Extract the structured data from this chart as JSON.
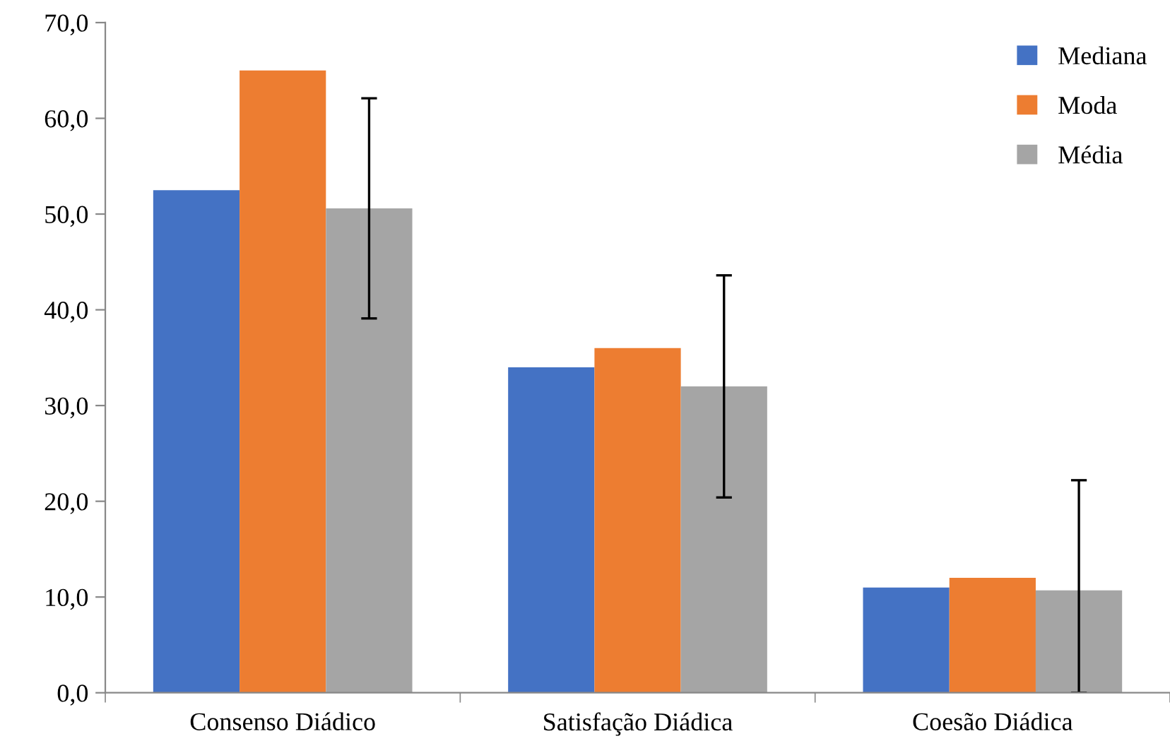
{
  "chart_data": {
    "type": "bar",
    "categories": [
      "Consenso Diádico",
      "Satisfação Diádica",
      "Coesão Diádica"
    ],
    "series": [
      {
        "name": "Mediana",
        "color": "#4472c4",
        "values": [
          52.5,
          34.0,
          11.0
        ]
      },
      {
        "name": "Moda",
        "color": "#ed7d31",
        "values": [
          65.0,
          36.0,
          12.0
        ]
      },
      {
        "name": "Média",
        "color": "#a5a5a5",
        "values": [
          50.6,
          32.0,
          10.7
        ],
        "errors": [
          [
            39.1,
            62.1
          ],
          [
            20.4,
            43.6
          ],
          [
            0,
            22.2
          ]
        ]
      }
    ],
    "ylim": [
      0,
      70
    ],
    "yticks": [
      {
        "value": 0,
        "label": "0,0"
      },
      {
        "value": 10,
        "label": "10,0"
      },
      {
        "value": 20,
        "label": "20,0"
      },
      {
        "value": 30,
        "label": "30,0"
      },
      {
        "value": 40,
        "label": "40,0"
      },
      {
        "value": 50,
        "label": "50,0"
      },
      {
        "value": 60,
        "label": "60,0"
      },
      {
        "value": 70,
        "label": "70,0"
      }
    ],
    "grid": false,
    "legend": "top right"
  }
}
